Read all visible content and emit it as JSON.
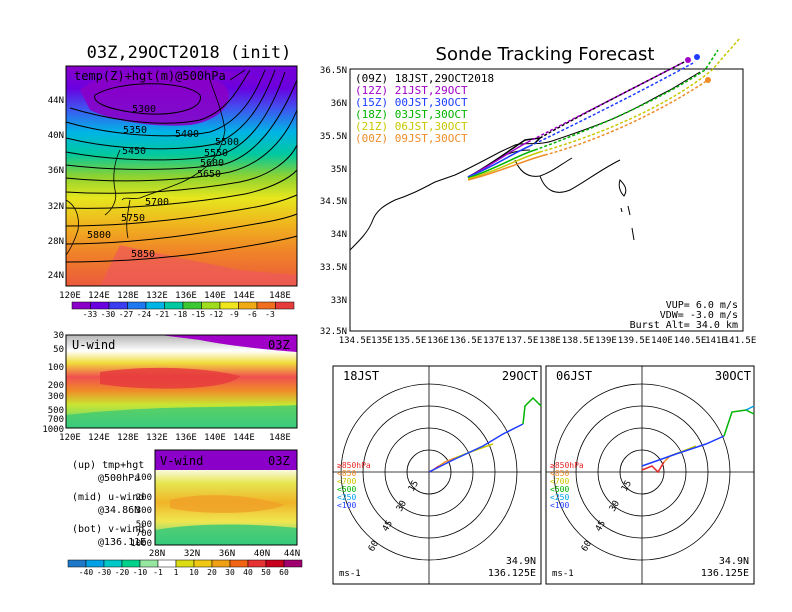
{
  "map_panel": {
    "title": "03Z,29OCT2018 (init)",
    "subtitle": "temp(Z)+hgt(m)@500hPa",
    "lat_ticks": [
      "44N",
      "40N",
      "36N",
      "32N",
      "28N",
      "24N"
    ],
    "lon_ticks": [
      "120E",
      "124E",
      "128E",
      "132E",
      "136E",
      "140E",
      "144E",
      "148E"
    ],
    "contours": [
      "5300",
      "5350",
      "5400",
      "5450",
      "5500",
      "5550",
      "5600",
      "5650",
      "5700",
      "5750",
      "5800",
      "5850"
    ],
    "colorbar": [
      "-33",
      "-30",
      "-27",
      "-24",
      "-21",
      "-18",
      "-15",
      "-12",
      "-9",
      "-6",
      "-3"
    ],
    "colorbar_colors": [
      "#8a00c8",
      "#6a00e0",
      "#3c3cf0",
      "#1e78f0",
      "#00b4e6",
      "#00c8a0",
      "#3cc832",
      "#a0dc1e",
      "#f0e61e",
      "#f0aa14",
      "#f06e1e",
      "#e63c3c"
    ]
  },
  "uwind_panel": {
    "label": "U-wind",
    "time": "03Z",
    "levels": [
      "30",
      "50",
      "100",
      "200",
      "300",
      "500",
      "700",
      "1000"
    ],
    "lon_ticks": [
      "120E",
      "124E",
      "128E",
      "132E",
      "136E",
      "140E",
      "144E",
      "148E"
    ]
  },
  "vwind_panel": {
    "label": "V-wind",
    "time": "03Z",
    "levels": [
      "100",
      "200",
      "300",
      "500",
      "700",
      "1000"
    ],
    "lat_ticks": [
      "28N",
      "32N",
      "36N",
      "40N",
      "44N"
    ],
    "colorbar": [
      "-40",
      "-30",
      "-20",
      "-10",
      "-1",
      "1",
      "10",
      "20",
      "30",
      "40",
      "50",
      "60"
    ],
    "colorbar_colors": [
      "#1e78c8",
      "#00a0e6",
      "#00c8c8",
      "#00d28c",
      "#96e6a0",
      "#ffffff",
      "#dcdc14",
      "#f0c814",
      "#f0a014",
      "#f06414",
      "#e63232",
      "#c8001e",
      "#a0006e"
    ]
  },
  "legend_notes": [
    {
      "a": "(up) tmp+hgt",
      "b": "@500hPa"
    },
    {
      "a": "(mid) u-wind",
      "b": "@34.86N"
    },
    {
      "a": "(bot) v-wind",
      "b": "@136.11E"
    }
  ],
  "forecast": {
    "title": "Sonde Tracking Forecast",
    "lat_ticks": [
      "36.5N",
      "36N",
      "35.5N",
      "35N",
      "34.5N",
      "34N",
      "33.5N",
      "33N",
      "32.5N"
    ],
    "lon_ticks": [
      "134.5E",
      "135E",
      "135.5E",
      "136E",
      "136.5E",
      "137E",
      "137.5E",
      "138E",
      "138.5E",
      "139E",
      "139.5E",
      "140E",
      "140.5E",
      "141E",
      "141.5E"
    ],
    "launches": [
      {
        "text": "(09Z)  18JST,29OCT2018",
        "color": "#000000"
      },
      {
        "text": "(12Z)  21JST,29OCT",
        "color": "#a000c8"
      },
      {
        "text": "(15Z)  00JST,30OCT",
        "color": "#1e3cff"
      },
      {
        "text": "(18Z)  03JST,30OCT",
        "color": "#00b400"
      },
      {
        "text": "(21Z)  06JST,30OCT",
        "color": "#c8c800"
      },
      {
        "text": "(00Z)  09JST,30OCT",
        "color": "#f08c28"
      }
    ],
    "params": [
      "VUP=  6.0 m/s",
      "VDW= -3.0 m/s",
      "Burst Alt= 34.0 km"
    ]
  },
  "hodographs": [
    {
      "time": "18JST",
      "date": "29OCT",
      "lat": "34.9N",
      "lon": "136.125E"
    },
    {
      "time": "06JST",
      "date": "30OCT",
      "lat": "34.9N",
      "lon": "136.125E"
    }
  ],
  "hodo_common": {
    "rings": [
      "15",
      "30",
      "45",
      "60"
    ],
    "units": "ms-1",
    "levels": [
      {
        "text": "≥850hPa",
        "color": "#e62828"
      },
      {
        "text": "<850",
        "color": "#f08c28"
      },
      {
        "text": "<700",
        "color": "#c8c800"
      },
      {
        "text": "<500",
        "color": "#00b400"
      },
      {
        "text": "<250",
        "color": "#00a0e6"
      },
      {
        "text": "<100",
        "color": "#1e3cff"
      }
    ]
  }
}
